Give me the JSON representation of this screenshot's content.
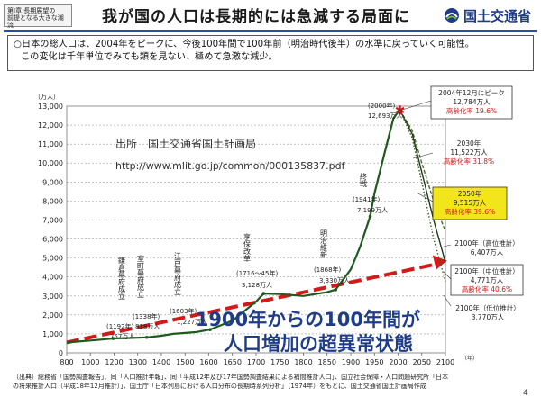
{
  "header": {
    "chapter_line1": "第Ⅰ章 長期展望の",
    "chapter_line2": "前提となる大きな潮流",
    "title": "我が国の人口は長期的には急減する局面に",
    "logo_text": "国土交通省"
  },
  "summary": {
    "line1": "○日本の総人口は、2004年をピークに、今後100年間で100年前（明治時代後半）の水準に戻っていく可能性。",
    "line2": "この変化は千年単位でみても類を見ない、極めて急激な減少。"
  },
  "source": {
    "line1": "出所　国土交通省国土計画局",
    "line2": "http://www.mlit.go.jp/common/000135837.pdf"
  },
  "slogan": {
    "line1": "1900年からの100年間が",
    "line2": "人口増加の超異常状態"
  },
  "footer": {
    "line1": "（出典）総務省「国勢調査報告」、同「人口推計年報」、同「平成12年及び17年国勢調査結果による補間推計人口」、国立社会保障・人口問題研究所「日本",
    "line2": "の将来推計人口（平成18年12月推計）」、国土庁「日本列島における人口分布の長期時系列分析」（1974年）をもとに、国土交通省国土計画局作成"
  },
  "page_number": "4",
  "colors": {
    "history_line": "#1e5a1e",
    "trend_arrow": "#d11a1a",
    "aging_text": "#d11a1a",
    "highlight_box": "#f2e51c",
    "slogan_text": "#1f3c88",
    "title_rule": "#2e4a9e"
  },
  "chart_data": {
    "type": "line",
    "ylabel": "（万人）",
    "xlabel": "（年）",
    "ylim": [
      0,
      13000
    ],
    "xlim": [
      800,
      2100
    ],
    "yticks": [
      "0",
      "1,000",
      "2,000",
      "3,000",
      "4,000",
      "5,000",
      "6,000",
      "7,000",
      "8,000",
      "9,000",
      "10,000",
      "11,000",
      "12,000",
      "13,000"
    ],
    "xticks": [
      "800",
      "1000",
      "1200",
      "1300",
      "1400",
      "1500",
      "1600",
      "1650",
      "1700",
      "1750",
      "1800",
      "1850",
      "1900",
      "1950",
      "2000",
      "2050",
      "2100"
    ],
    "grid": true,
    "series": [
      {
        "key": "history",
        "x": [
          800,
          900,
          1000,
          1100,
          1192,
          1250,
          1338,
          1400,
          1450,
          1500,
          1550,
          1603,
          1650,
          1700,
          1716,
          1750,
          1800,
          1850,
          1868,
          1900,
          1920,
          1941,
          1950,
          1970,
          1990,
          2000,
          2004
        ],
        "y": [
          550,
          600,
          650,
          700,
          757,
          780,
          818,
          900,
          1000,
          1050,
          1100,
          1227,
          1700,
          2700,
          3128,
          3100,
          3000,
          3200,
          3330,
          4400,
          5600,
          7199,
          8400,
          10400,
          12360,
          12693,
          12784
        ]
      },
      {
        "key": "proj-high",
        "x": [
          2004,
          2030,
          2050,
          2075,
          2100
        ],
        "y": [
          12784,
          11700,
          10000,
          8000,
          6407
        ]
      },
      {
        "key": "proj-mid",
        "x": [
          2004,
          2030,
          2050,
          2075,
          2100
        ],
        "y": [
          12784,
          11522,
          9515,
          7000,
          4771
        ]
      },
      {
        "key": "proj-low",
        "x": [
          2004,
          2030,
          2050,
          2075,
          2100
        ],
        "y": [
          12784,
          11300,
          9000,
          6000,
          3770
        ]
      }
    ],
    "trend": {
      "x": [
        800,
        2092
      ],
      "y": [
        550,
        4771
      ]
    },
    "point_labels": [
      {
        "key": "kamakura",
        "x": 1192,
        "y": 757,
        "year": "(1192年)",
        "value": "757万人",
        "name": "鎌倉幕府成立"
      },
      {
        "key": "muromachi",
        "x": 1338,
        "y": 818,
        "year": "(1338年)",
        "value": "818万人",
        "name": "室町幕府成立"
      },
      {
        "key": "edo",
        "x": 1603,
        "y": 1227,
        "year": "(1603年)",
        "value": "1,227万人",
        "name": "江戸幕府成立"
      },
      {
        "key": "kyoho",
        "x": 1716,
        "y": 3128,
        "year": "(1716〜45年)",
        "value": "3,128万人",
        "name": "享保改革"
      },
      {
        "key": "meiji",
        "x": 1868,
        "y": 3330,
        "year": "(1868年)",
        "value": "3,330万人",
        "name": "明治維新"
      },
      {
        "key": "war",
        "x": 1941,
        "y": 7199,
        "year": "(1941年)",
        "value": "7,199万人",
        "name": "終戦"
      },
      {
        "key": "y2000",
        "x": 2000,
        "y": 12693,
        "year": "(2000年)",
        "value": "12,693万人"
      }
    ],
    "callouts": [
      {
        "key": "peak",
        "title": "2004年12月にピーク",
        "value": "12,784万人",
        "aging": "高齢化率 19.6%"
      },
      {
        "key": "c2030",
        "title": "2030年",
        "value": "11,522万人",
        "aging": "高齢化率 31.8%"
      },
      {
        "key": "c2050",
        "title": "2050年",
        "value": "9,515万人",
        "aging": "高齢化率 39.6%"
      },
      {
        "key": "high",
        "title": "2100年（高位推計）",
        "value": "6,407万人"
      },
      {
        "key": "mid",
        "title": "2100年（中位推計）",
        "value": "4,771万人",
        "aging": "高齢化率 40.6%"
      },
      {
        "key": "low",
        "title": "2100年（低位推計）",
        "value": "3,770万人"
      }
    ]
  }
}
